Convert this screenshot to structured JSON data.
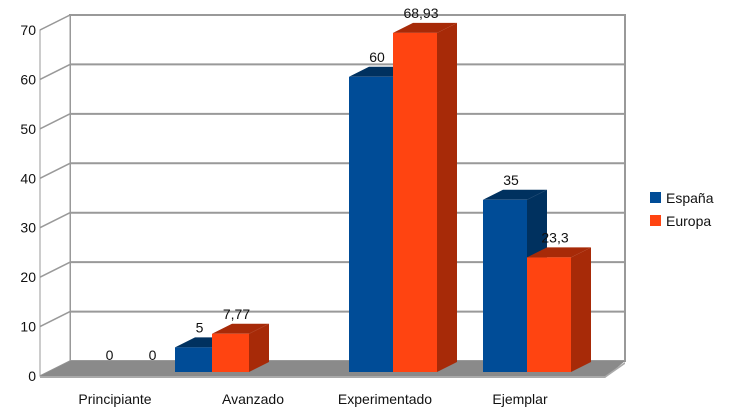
{
  "chart_data": {
    "type": "bar",
    "title": "",
    "xlabel": "",
    "ylabel": "",
    "categories": [
      "Principiante",
      "Avanzado",
      "Experimentado",
      "Ejemplar"
    ],
    "series": [
      {
        "name": "España",
        "values": [
          0,
          5,
          60,
          35
        ],
        "labels": [
          "0",
          "5",
          "60",
          "35"
        ],
        "color": "#004c97",
        "side": "#00315f"
      },
      {
        "name": "Europa",
        "values": [
          0,
          7.77,
          68.93,
          23.3
        ],
        "labels": [
          "0",
          "7,77",
          "68,93",
          "23,3"
        ],
        "color": "#ff4411",
        "side": "#a72a08"
      }
    ],
    "ylim": [
      0,
      70
    ],
    "yticks": [
      "0",
      "10",
      "20",
      "30",
      "40",
      "50",
      "60",
      "70"
    ],
    "grid": true,
    "legend": "right"
  }
}
